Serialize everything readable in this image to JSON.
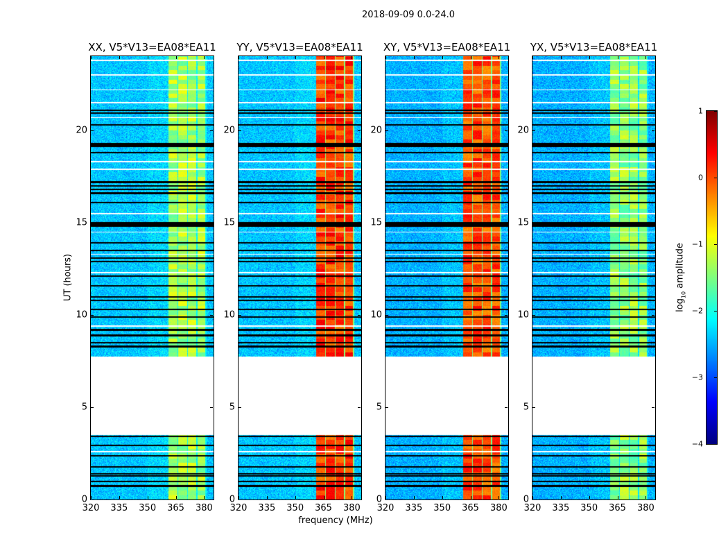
{
  "chart_data": {
    "type": "heatmap",
    "title": "2018-09-09 0.0-24.0",
    "xlabel": "frequency (MHz)",
    "ylabel": "UT (hours)",
    "xlim": [
      320,
      385
    ],
    "ylim": [
      0,
      24
    ],
    "xticks": [
      "320",
      "335",
      "350",
      "365",
      "380"
    ],
    "xtick_values": [
      320,
      335,
      350,
      365,
      380
    ],
    "yticks": [
      "0",
      "5",
      "10",
      "15",
      "20"
    ],
    "ytick_values": [
      0,
      5,
      10,
      15,
      20
    ],
    "panels": [
      {
        "title": "XX, V5*V13=EA08*EA11",
        "background_log_amp": -2.4,
        "rfi_log_amp": -1.3
      },
      {
        "title": "YY, V5*V13=EA08*EA11",
        "background_log_amp": -2.4,
        "rfi_log_amp": 0.1
      },
      {
        "title": "XY, V5*V13=EA08*EA11",
        "background_log_amp": -2.5,
        "rfi_log_amp": 0.0
      },
      {
        "title": "YX, V5*V13=EA08*EA11",
        "background_log_amp": -2.5,
        "rfi_log_amp": -1.4
      }
    ],
    "rfi_subbands_mhz": [
      [
        361,
        365.7
      ],
      [
        366.2,
        370.8
      ],
      [
        371.3,
        375.8
      ],
      [
        376.3,
        380.5
      ]
    ],
    "no_data_hr": [
      [
        3.5,
        7.75
      ]
    ],
    "flagged_times_hr": [
      0.75,
      1.0,
      1.3,
      1.4,
      1.8,
      2.4,
      2.95,
      3.45,
      8.3,
      8.5,
      8.9,
      9.2,
      9.9,
      10.3,
      10.8,
      11.0,
      11.6,
      12.1,
      12.9,
      13.1,
      13.5,
      13.9,
      14.9,
      15.0,
      16.1,
      16.6,
      16.8,
      17.0,
      17.2,
      18.8,
      19.2,
      19.3,
      20.3,
      20.95,
      21.1
    ],
    "thick_flagged_times_hr": [
      19.2,
      14.9
    ],
    "missing_rows_hr": [
      2.6,
      9.4,
      12.3,
      13.3,
      14.5,
      15.5,
      17.9,
      18.3,
      20.7,
      21.5,
      22.2,
      23.0,
      23.8
    ],
    "colorbar": {
      "label": "log10 amplitude",
      "label_main": "log",
      "label_sub": "10",
      "label_rest": " amplitude",
      "range": [
        -4,
        1
      ],
      "ticks": [
        "1",
        "0",
        "−1",
        "−2",
        "−3",
        "−4"
      ],
      "tick_values": [
        1,
        0,
        -1,
        -2,
        -3,
        -4
      ],
      "colormap": "jet"
    }
  }
}
